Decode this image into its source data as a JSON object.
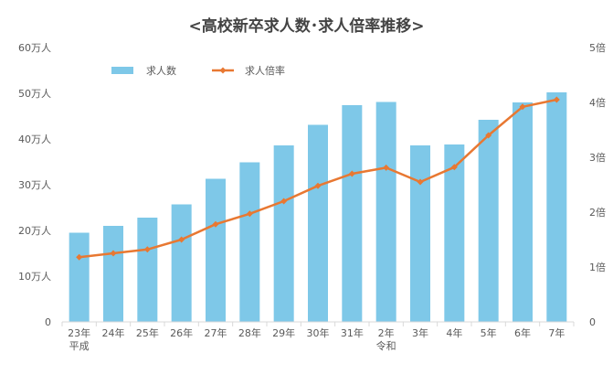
{
  "chart_data": {
    "type": "bar",
    "title": "<高校新卒求人数･求人倍率推移>",
    "categories": [
      "23年",
      "24年",
      "25年",
      "26年",
      "27年",
      "28年",
      "29年",
      "30年",
      "31年",
      "2年",
      "3年",
      "4年",
      "5年",
      "6年",
      "7年"
    ],
    "era_labels": [
      "平成",
      "",
      "",
      "",
      "",
      "",
      "",
      "",
      "",
      "令和",
      "",
      "",
      "",
      "",
      ""
    ],
    "y_ticks_left": [
      "0",
      "10万人",
      "20万人",
      "30万人",
      "40万人",
      "50万人",
      "60万人"
    ],
    "y_ticks_right": [
      "0",
      "1倍",
      "2倍",
      "3倍",
      "4倍",
      "5倍"
    ],
    "ylim_left": [
      0,
      60
    ],
    "ylim_right": [
      0,
      5
    ],
    "legend_position": "top-left",
    "series": [
      {
        "name": "求人数",
        "type": "bar",
        "axis": "left",
        "unit": "万人",
        "color": "#7EC8E8",
        "values": [
          19.5,
          21.0,
          22.8,
          25.7,
          31.3,
          34.9,
          38.6,
          43.1,
          47.4,
          48.1,
          38.6,
          38.8,
          44.2,
          48.0,
          50.2
        ]
      },
      {
        "name": "求人倍率",
        "type": "line",
        "axis": "right",
        "unit": "倍",
        "color": "#E87832",
        "values": [
          1.18,
          1.25,
          1.32,
          1.5,
          1.78,
          1.97,
          2.2,
          2.48,
          2.7,
          2.81,
          2.55,
          2.82,
          3.4,
          3.92,
          4.05
        ]
      }
    ]
  }
}
